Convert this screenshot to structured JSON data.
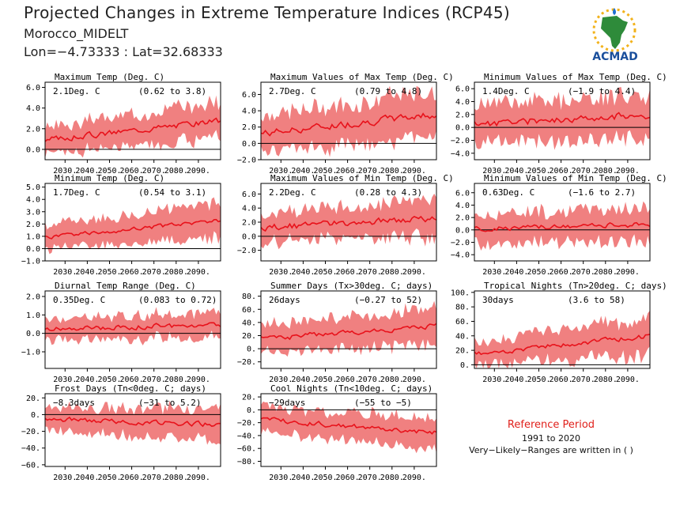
{
  "header": {
    "title": "Projected Changes in Extreme Temperature Indices (RCP45)",
    "location": "Morocco_MIDELT",
    "coords": "Lon=−4.73333 : Lat=32.68333"
  },
  "logo": {
    "text": "ACMAD"
  },
  "reference": {
    "title": "Reference Period",
    "years": "1991 to 2020",
    "note": "Very−Likely−Ranges are written in ( )"
  },
  "colors": {
    "band": "#f08080",
    "line": "#e8121b",
    "zero_line": "#000000",
    "axis": "#000000"
  },
  "chart_data": [
    {
      "type": "line",
      "title": "Maximum Temp (Deg. C)",
      "value_label": "2.1Deg. C",
      "range_label": "(0.62 to 3.8)",
      "x_start": 2021,
      "x_end": 2100,
      "xticks": [
        2030,
        2040,
        2050,
        2060,
        2070,
        2080,
        2090
      ],
      "xtick_labels": [
        "2030.",
        "2040.",
        "2050.",
        "2060.",
        "2070.",
        "2080.",
        "2090."
      ],
      "ylim": [
        -1.0,
        6.5
      ],
      "yticks": [
        0.0,
        2.0,
        4.0,
        6.0
      ],
      "ytick_labels": [
        "0.0",
        "2.0",
        "4.0",
        "6.0"
      ],
      "median_start": 0.9,
      "median_end": 2.8,
      "spread_start": 1.3,
      "spread_end": 2.0,
      "jitter": 0.25,
      "seed": 3
    },
    {
      "type": "line",
      "title": "Maximum Values of Max Temp (Deg. C)",
      "value_label": "2.7Deg. C",
      "range_label": "(0.79 to 4.8)",
      "x_start": 2021,
      "x_end": 2100,
      "xticks": [
        2030,
        2040,
        2050,
        2060,
        2070,
        2080,
        2090
      ],
      "xtick_labels": [
        "2030.",
        "2040.",
        "2050.",
        "2060.",
        "2070.",
        "2080.",
        "2090."
      ],
      "ylim": [
        -2.0,
        7.5
      ],
      "yticks": [
        -2.0,
        0.0,
        2.0,
        4.0,
        6.0
      ],
      "ytick_labels": [
        "−2.0",
        "0.0",
        "2.0",
        "4.0",
        "6.0"
      ],
      "median_start": 1.2,
      "median_end": 3.6,
      "spread_start": 2.4,
      "spread_end": 3.0,
      "jitter": 0.4,
      "seed": 7
    },
    {
      "type": "line",
      "title": "Minimum Values of Max Temp (Deg. C)",
      "value_label": "1.4Deg. C",
      "range_label": "(−1.9 to 4.4)",
      "x_start": 2021,
      "x_end": 2100,
      "xticks": [
        2030,
        2040,
        2050,
        2060,
        2070,
        2080,
        2090
      ],
      "xtick_labels": [
        "2030.",
        "2040.",
        "2050.",
        "2060.",
        "2070.",
        "2080.",
        "2090."
      ],
      "ylim": [
        -5.0,
        7.0
      ],
      "yticks": [
        -4.0,
        -2.0,
        0.0,
        2.0,
        4.0,
        6.0
      ],
      "ytick_labels": [
        "−4.0",
        "−2.0",
        "0.0",
        "2.0",
        "4.0",
        "6.0"
      ],
      "median_start": 0.5,
      "median_end": 2.0,
      "spread_start": 3.2,
      "spread_end": 3.6,
      "jitter": 0.5,
      "seed": 11
    },
    {
      "type": "line",
      "title": "Minimum Temp (Deg. C)",
      "value_label": "1.7Deg. C",
      "range_label": "(0.54 to 3.1)",
      "x_start": 2021,
      "x_end": 2100,
      "xticks": [
        2030,
        2040,
        2050,
        2060,
        2070,
        2080,
        2090
      ],
      "xtick_labels": [
        "2030.",
        "2040.",
        "2050.",
        "2060.",
        "2070.",
        "2080.",
        "2090."
      ],
      "ylim": [
        -1.0,
        5.3
      ],
      "yticks": [
        -1.0,
        0.0,
        1.0,
        2.0,
        3.0,
        4.0,
        5.0
      ],
      "ytick_labels": [
        "−1.0",
        "0.0",
        "1.0",
        "2.0",
        "3.0",
        "4.0",
        "5.0"
      ],
      "median_start": 0.9,
      "median_end": 2.3,
      "spread_start": 1.0,
      "spread_end": 1.5,
      "jitter": 0.15,
      "seed": 5
    },
    {
      "type": "line",
      "title": "Maximum Values of Min Temp (Deg. C)",
      "value_label": "2.2Deg. C",
      "range_label": "(0.28 to 4.3)",
      "x_start": 2021,
      "x_end": 2100,
      "xticks": [
        2030,
        2040,
        2050,
        2060,
        2070,
        2080,
        2090
      ],
      "xtick_labels": [
        "2030.",
        "2040.",
        "2050.",
        "2060.",
        "2070.",
        "2080.",
        "2090."
      ],
      "ylim": [
        -3.5,
        7.5
      ],
      "yticks": [
        -2.0,
        0.0,
        2.0,
        4.0,
        6.0
      ],
      "ytick_labels": [
        "−2.0",
        "0.0",
        "2.0",
        "4.0",
        "6.0"
      ],
      "median_start": 1.2,
      "median_end": 2.6,
      "spread_start": 2.2,
      "spread_end": 2.8,
      "jitter": 0.4,
      "seed": 13
    },
    {
      "type": "line",
      "title": "Minimum Values of Min Temp (Deg. C)",
      "value_label": "0.63Deg. C",
      "range_label": "(−1.6 to 2.7)",
      "x_start": 2021,
      "x_end": 2100,
      "xticks": [
        2030,
        2040,
        2050,
        2060,
        2070,
        2080,
        2090
      ],
      "xtick_labels": [
        "2030.",
        "2040.",
        "2050.",
        "2060.",
        "2070.",
        "2080.",
        "2090."
      ],
      "ylim": [
        -5.0,
        7.5
      ],
      "yticks": [
        -4.0,
        -2.0,
        0.0,
        2.0,
        4.0,
        6.0
      ],
      "ytick_labels": [
        "−4.0",
        "−2.0",
        "0.0",
        "2.0",
        "4.0",
        "6.0"
      ],
      "median_start": 0.1,
      "median_end": 0.9,
      "spread_start": 2.6,
      "spread_end": 3.0,
      "jitter": 0.35,
      "seed": 17
    },
    {
      "type": "line",
      "title": "Diurnal Temp Range (Deg. C)",
      "value_label": "0.35Deg. C",
      "range_label": "(0.083 to 0.72)",
      "x_start": 2021,
      "x_end": 2100,
      "xticks": [
        2030,
        2040,
        2050,
        2060,
        2070,
        2080,
        2090
      ],
      "xtick_labels": [
        "2030.",
        "2040.",
        "2050.",
        "2060.",
        "2070.",
        "2080.",
        "2090."
      ],
      "ylim": [
        -1.9,
        2.3
      ],
      "yticks": [
        -1.0,
        0.0,
        1.0,
        2.0
      ],
      "ytick_labels": [
        "−1.0",
        "0.0",
        "1.0",
        "2.0"
      ],
      "median_start": 0.2,
      "median_end": 0.5,
      "spread_start": 0.6,
      "spread_end": 0.75,
      "jitter": 0.12,
      "seed": 19
    },
    {
      "type": "line",
      "title": "Summer Days (Tx>30deg. C; days)",
      "value_label": "26days",
      "range_label": "(−0.27 to 52)",
      "x_start": 2021,
      "x_end": 2100,
      "xticks": [
        2030,
        2040,
        2050,
        2060,
        2070,
        2080,
        2090
      ],
      "xtick_labels": [
        "2030.",
        "2040.",
        "2050.",
        "2060.",
        "2070.",
        "2080.",
        "2090."
      ],
      "ylim": [
        -30,
        88
      ],
      "yticks": [
        -20,
        0,
        20,
        40,
        60,
        80
      ],
      "ytick_labels": [
        "−20.",
        "0.",
        "20.",
        "40.",
        "60.",
        "80."
      ],
      "median_start": 15,
      "median_end": 35,
      "spread_start": 22,
      "spread_end": 30,
      "jitter": 3.5,
      "seed": 23
    },
    {
      "type": "line",
      "title": "Tropical Nights (Tn>20deg. C; days)",
      "value_label": "30days",
      "range_label": "(3.6 to 58)",
      "x_start": 2021,
      "x_end": 2100,
      "xticks": [
        2030,
        2040,
        2050,
        2060,
        2070,
        2080,
        2090
      ],
      "xtick_labels": [
        "2030.",
        "2040.",
        "2050.",
        "2060.",
        "2070.",
        "2080.",
        "2090."
      ],
      "ylim": [
        -5,
        102
      ],
      "yticks": [
        0,
        20,
        40,
        60,
        80,
        100
      ],
      "ytick_labels": [
        "0.",
        "20.",
        "40.",
        "60.",
        "80.",
        "100."
      ],
      "median_start": 15,
      "median_end": 40,
      "spread_start": 16,
      "spread_end": 28,
      "jitter": 3.0,
      "seed": 29
    },
    {
      "type": "line",
      "title": "Frost Days (Tn<0deg. C; days)",
      "value_label": "−8.3days",
      "range_label": "(−31 to 5.2)",
      "x_start": 2021,
      "x_end": 2100,
      "xticks": [
        2030,
        2040,
        2050,
        2060,
        2070,
        2080,
        2090
      ],
      "xtick_labels": [
        "2030.",
        "2040.",
        "2050.",
        "2060.",
        "2070.",
        "2080.",
        "2090."
      ],
      "ylim": [
        -62,
        25
      ],
      "yticks": [
        -60,
        -40,
        -20,
        0,
        20
      ],
      "ytick_labels": [
        "−60.",
        "−40.",
        "−20.",
        "0.",
        "20."
      ],
      "median_start": -5,
      "median_end": -12,
      "spread_start": 14,
      "spread_end": 22,
      "jitter": 2.5,
      "seed": 31
    },
    {
      "type": "line",
      "title": "Cool Nights (Tn<10deg. C; days)",
      "value_label": "−29days",
      "range_label": "(−55 to −5)",
      "x_start": 2021,
      "x_end": 2100,
      "xticks": [
        2030,
        2040,
        2050,
        2060,
        2070,
        2080,
        2090
      ],
      "xtick_labels": [
        "2030.",
        "2040.",
        "2050.",
        "2060.",
        "2070.",
        "2080.",
        "2090."
      ],
      "ylim": [
        -88,
        25
      ],
      "yticks": [
        -80,
        -60,
        -40,
        -20,
        0,
        20
      ],
      "ytick_labels": [
        "−80.",
        "−60.",
        "−40.",
        "−20.",
        "0.",
        "20."
      ],
      "median_start": -15,
      "median_end": -35,
      "spread_start": 20,
      "spread_end": 26,
      "jitter": 3.5,
      "seed": 37
    }
  ]
}
